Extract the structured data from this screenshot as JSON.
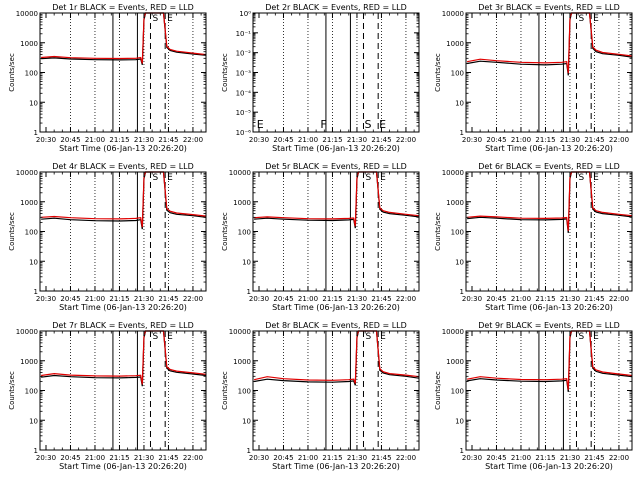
{
  "figure": {
    "x_axis_title": "Start Time (06-Jan-13 20:26:20)",
    "y_axis_title": "Counts/sec",
    "x_tick_labels": [
      "20:30",
      "20:45",
      "21:00",
      "21:15",
      "21:30",
      "21:45",
      "22:00"
    ],
    "y_tick_labels_log": [
      "1",
      "10",
      "100",
      "1000",
      "10000"
    ],
    "y_tick_labels_det2": [
      "10⁰",
      "10⁻¹",
      "10⁻²",
      "10⁻³",
      "10⁻⁴",
      "10⁻⁵",
      "10⁻⁶"
    ],
    "colors": {
      "events": "#000000",
      "lld": "#e00000"
    }
  },
  "chart_data": [
    {
      "type": "line",
      "title": "Det 1r BLACK = Events, RED = LLD",
      "xlabel": "Start Time (06-Jan-13 20:26:20)",
      "ylabel": "Counts/sec",
      "x_time_range": [
        "20:26:20",
        "22:08"
      ],
      "ylim": [
        1,
        10000
      ],
      "y_scale": "log",
      "grid": "dotted vertical at 15-min ticks",
      "markers": [
        {
          "label": "S",
          "time": "21:34"
        },
        {
          "label": "E",
          "time": "21:43"
        }
      ],
      "series": [
        {
          "name": "Events",
          "color": "#000000",
          "x": [
            "20:27",
            "20:35",
            "20:45",
            "21:00",
            "21:15",
            "21:25",
            "21:28",
            "21:29",
            "21:30",
            "21:31",
            "21:35",
            "21:40",
            "21:42",
            "21:44",
            "21:46",
            "21:50",
            "22:00",
            "22:08"
          ],
          "y": [
            290,
            310,
            285,
            270,
            265,
            270,
            285,
            180,
            6000,
            10000,
            10000,
            10000,
            10000,
            700,
            550,
            480,
            420,
            380
          ]
        },
        {
          "name": "LLD",
          "color": "#e00000",
          "x": [
            "20:27",
            "20:35",
            "20:45",
            "21:00",
            "21:15",
            "21:25",
            "21:28",
            "21:29",
            "21:30",
            "21:31",
            "21:35",
            "21:40",
            "21:42",
            "21:44",
            "21:46",
            "21:50",
            "22:00",
            "22:08"
          ],
          "y": [
            320,
            345,
            315,
            300,
            295,
            300,
            320,
            200,
            7000,
            10000,
            10000,
            10000,
            10000,
            760,
            600,
            520,
            450,
            400
          ]
        }
      ]
    },
    {
      "type": "line",
      "title": "Det 2r BLACK = Events, RED = LLD",
      "xlabel": "Start Time (06-Jan-13 20:26:20)",
      "ylabel": "Counts/sec",
      "x_time_range": [
        "20:26:20",
        "22:08"
      ],
      "ylim": [
        1e-06,
        1
      ],
      "y_scale": "log",
      "grid": "dotted vertical at 15-min ticks",
      "markers": [
        {
          "label": "E",
          "time": "20:28"
        },
        {
          "label": "F",
          "time": "21:07"
        },
        {
          "label": "S",
          "time": "21:34"
        },
        {
          "label": "E",
          "time": "21:43"
        }
      ],
      "series": []
    },
    {
      "type": "line",
      "title": "Det 3r BLACK = Events, RED = LLD",
      "xlabel": "Start Time (06-Jan-13 20:26:20)",
      "ylabel": "Counts/sec",
      "x_time_range": [
        "20:26:20",
        "22:08"
      ],
      "ylim": [
        1,
        10000
      ],
      "y_scale": "log",
      "grid": "dotted vertical at 15-min ticks",
      "markers": [
        {
          "label": "S",
          "time": "21:34"
        },
        {
          "label": "E",
          "time": "21:43"
        }
      ],
      "series": [
        {
          "name": "Events",
          "color": "#000000",
          "x": [
            "20:27",
            "20:35",
            "20:45",
            "21:00",
            "21:15",
            "21:25",
            "21:28",
            "21:29",
            "21:30",
            "21:31",
            "21:35",
            "21:40",
            "21:42",
            "21:44",
            "21:46",
            "21:50",
            "22:00",
            "22:08"
          ],
          "y": [
            200,
            240,
            220,
            190,
            180,
            190,
            200,
            80,
            6000,
            10000,
            10000,
            10000,
            10000,
            650,
            500,
            430,
            380,
            330
          ]
        },
        {
          "name": "LLD",
          "color": "#e00000",
          "x": [
            "20:27",
            "20:35",
            "20:45",
            "21:00",
            "21:15",
            "21:25",
            "21:28",
            "21:29",
            "21:30",
            "21:31",
            "21:35",
            "21:40",
            "21:42",
            "21:44",
            "21:46",
            "21:50",
            "22:00",
            "22:08"
          ],
          "y": [
            230,
            280,
            250,
            220,
            210,
            220,
            230,
            95,
            7000,
            10000,
            10000,
            10000,
            10000,
            720,
            560,
            470,
            410,
            360
          ]
        }
      ]
    },
    {
      "type": "line",
      "title": "Det 4r BLACK = Events, RED = LLD",
      "xlabel": "Start Time (06-Jan-13 20:26:20)",
      "ylabel": "Counts/sec",
      "x_time_range": [
        "20:26:20",
        "22:08"
      ],
      "ylim": [
        1,
        10000
      ],
      "y_scale": "log",
      "grid": "dotted vertical at 15-min ticks",
      "markers": [
        {
          "label": "S",
          "time": "21:34"
        },
        {
          "label": "E",
          "time": "21:43"
        }
      ],
      "series": [
        {
          "name": "Events",
          "color": "#000000",
          "x": [
            "20:27",
            "20:35",
            "20:45",
            "21:00",
            "21:15",
            "21:25",
            "21:28",
            "21:29",
            "21:30",
            "21:31",
            "21:35",
            "21:40",
            "21:42",
            "21:44",
            "21:46",
            "21:50",
            "22:00",
            "22:08"
          ],
          "y": [
            260,
            280,
            250,
            230,
            225,
            235,
            250,
            120,
            6000,
            10000,
            10000,
            10000,
            10000,
            520,
            430,
            380,
            340,
            300
          ]
        },
        {
          "name": "LLD",
          "color": "#e00000",
          "x": [
            "20:27",
            "20:35",
            "20:45",
            "21:00",
            "21:15",
            "21:25",
            "21:28",
            "21:29",
            "21:30",
            "21:31",
            "21:35",
            "21:40",
            "21:42",
            "21:44",
            "21:46",
            "21:50",
            "22:00",
            "22:08"
          ],
          "y": [
            300,
            320,
            290,
            270,
            265,
            275,
            290,
            140,
            7000,
            10000,
            10000,
            10000,
            10000,
            600,
            480,
            420,
            370,
            330
          ]
        }
      ]
    },
    {
      "type": "line",
      "title": "Det 5r BLACK = Events, RED = LLD",
      "xlabel": "Start Time (06-Jan-13 20:26:20)",
      "ylabel": "Counts/sec",
      "x_time_range": [
        "20:26:20",
        "22:08"
      ],
      "ylim": [
        1,
        10000
      ],
      "y_scale": "log",
      "grid": "dotted vertical at 15-min ticks",
      "markers": [
        {
          "label": "S",
          "time": "21:34"
        },
        {
          "label": "E",
          "time": "21:43"
        }
      ],
      "series": [
        {
          "name": "Events",
          "color": "#000000",
          "x": [
            "20:27",
            "20:35",
            "20:45",
            "21:00",
            "21:15",
            "21:25",
            "21:28",
            "21:29",
            "21:30",
            "21:31",
            "21:35",
            "21:40",
            "21:42",
            "21:44",
            "21:46",
            "21:50",
            "22:00",
            "22:08"
          ],
          "y": [
            260,
            280,
            260,
            240,
            235,
            245,
            255,
            130,
            6000,
            10000,
            10000,
            10000,
            10000,
            560,
            450,
            400,
            350,
            310
          ]
        },
        {
          "name": "LLD",
          "color": "#e00000",
          "x": [
            "20:27",
            "20:35",
            "20:45",
            "21:00",
            "21:15",
            "21:25",
            "21:28",
            "21:29",
            "21:30",
            "21:31",
            "21:35",
            "21:40",
            "21:42",
            "21:44",
            "21:46",
            "21:50",
            "22:00",
            "22:08"
          ],
          "y": [
            290,
            310,
            290,
            270,
            265,
            275,
            285,
            150,
            7000,
            10000,
            10000,
            10000,
            10000,
            620,
            500,
            440,
            380,
            340
          ]
        }
      ]
    },
    {
      "type": "line",
      "title": "Det 6r BLACK = Events, RED = LLD",
      "xlabel": "Start Time (06-Jan-13 20:26:20)",
      "ylabel": "Counts/sec",
      "x_time_range": [
        "20:26:20",
        "22:08"
      ],
      "ylim": [
        1,
        10000
      ],
      "y_scale": "log",
      "grid": "dotted vertical at 15-min ticks",
      "markers": [
        {
          "label": "S",
          "time": "21:34"
        },
        {
          "label": "E",
          "time": "21:43"
        }
      ],
      "series": [
        {
          "name": "Events",
          "color": "#000000",
          "x": [
            "20:27",
            "20:35",
            "20:45",
            "21:00",
            "21:15",
            "21:25",
            "21:28",
            "21:29",
            "21:30",
            "21:31",
            "21:35",
            "21:40",
            "21:42",
            "21:44",
            "21:46",
            "21:50",
            "22:00",
            "22:08"
          ],
          "y": [
            270,
            300,
            280,
            250,
            245,
            255,
            265,
            90,
            6000,
            10000,
            10000,
            10000,
            10000,
            560,
            450,
            400,
            350,
            310
          ]
        },
        {
          "name": "LLD",
          "color": "#e00000",
          "x": [
            "20:27",
            "20:35",
            "20:45",
            "21:00",
            "21:15",
            "21:25",
            "21:28",
            "21:29",
            "21:30",
            "21:31",
            "21:35",
            "21:40",
            "21:42",
            "21:44",
            "21:46",
            "21:50",
            "22:00",
            "22:08"
          ],
          "y": [
            300,
            330,
            310,
            280,
            275,
            285,
            295,
            105,
            7000,
            10000,
            10000,
            10000,
            10000,
            620,
            500,
            440,
            380,
            340
          ]
        }
      ]
    },
    {
      "type": "line",
      "title": "Det 7r BLACK = Events, RED = LLD",
      "xlabel": "Start Time (06-Jan-13 20:26:20)",
      "ylabel": "Counts/sec",
      "x_time_range": [
        "20:26:20",
        "22:08"
      ],
      "ylim": [
        1,
        10000
      ],
      "y_scale": "log",
      "grid": "dotted vertical at 15-min ticks",
      "markers": [
        {
          "label": "S",
          "time": "21:34"
        },
        {
          "label": "E",
          "time": "21:43"
        }
      ],
      "series": [
        {
          "name": "Events",
          "color": "#000000",
          "x": [
            "20:27",
            "20:35",
            "20:45",
            "21:00",
            "21:15",
            "21:25",
            "21:28",
            "21:29",
            "21:30",
            "21:31",
            "21:35",
            "21:40",
            "21:42",
            "21:44",
            "21:46",
            "21:50",
            "22:00",
            "22:08"
          ],
          "y": [
            280,
            320,
            290,
            270,
            265,
            275,
            285,
            140,
            6000,
            10000,
            10000,
            10000,
            10000,
            560,
            460,
            410,
            360,
            320
          ]
        },
        {
          "name": "LLD",
          "color": "#e00000",
          "x": [
            "20:27",
            "20:35",
            "20:45",
            "21:00",
            "21:15",
            "21:25",
            "21:28",
            "21:29",
            "21:30",
            "21:31",
            "21:35",
            "21:40",
            "21:42",
            "21:44",
            "21:46",
            "21:50",
            "22:00",
            "22:08"
          ],
          "y": [
            320,
            370,
            330,
            310,
            305,
            315,
            325,
            160,
            7000,
            10000,
            10000,
            10000,
            10000,
            620,
            510,
            450,
            390,
            350
          ]
        }
      ]
    },
    {
      "type": "line",
      "title": "Det 8r BLACK = Events, RED = LLD",
      "xlabel": "Start Time (06-Jan-13 20:26:20)",
      "ylabel": "Counts/sec",
      "x_time_range": [
        "20:26:20",
        "22:08"
      ],
      "ylim": [
        1,
        10000
      ],
      "y_scale": "log",
      "grid": "dotted vertical at 15-min ticks",
      "markers": [
        {
          "label": "S",
          "time": "21:34"
        },
        {
          "label": "E",
          "time": "21:43"
        }
      ],
      "series": [
        {
          "name": "Events",
          "color": "#000000",
          "x": [
            "20:27",
            "20:35",
            "20:45",
            "21:00",
            "21:15",
            "21:25",
            "21:28",
            "21:29",
            "21:30",
            "21:31",
            "21:35",
            "21:40",
            "21:42",
            "21:44",
            "21:46",
            "21:50",
            "22:00",
            "22:08"
          ],
          "y": [
            200,
            240,
            215,
            195,
            190,
            200,
            210,
            150,
            6000,
            10000,
            10000,
            10000,
            10000,
            480,
            390,
            340,
            300,
            260
          ]
        },
        {
          "name": "LLD",
          "color": "#e00000",
          "x": [
            "20:27",
            "20:35",
            "20:45",
            "21:00",
            "21:15",
            "21:25",
            "21:28",
            "21:29",
            "21:30",
            "21:31",
            "21:35",
            "21:40",
            "21:42",
            "21:44",
            "21:46",
            "21:50",
            "22:00",
            "22:08"
          ],
          "y": [
            230,
            290,
            250,
            225,
            220,
            230,
            240,
            170,
            7000,
            10000,
            10000,
            10000,
            10000,
            540,
            430,
            370,
            330,
            290
          ]
        }
      ]
    },
    {
      "type": "line",
      "title": "Det 9r BLACK = Events, RED = LLD",
      "xlabel": "Start Time (06-Jan-13 20:26:20)",
      "ylabel": "Counts/sec",
      "x_time_range": [
        "20:26:20",
        "22:08"
      ],
      "ylim": [
        1,
        10000
      ],
      "y_scale": "log",
      "grid": "dotted vertical at 15-min ticks",
      "markers": [
        {
          "label": "S",
          "time": "21:34"
        },
        {
          "label": "E",
          "time": "21:43"
        }
      ],
      "series": [
        {
          "name": "Events",
          "color": "#000000",
          "x": [
            "20:27",
            "20:35",
            "20:45",
            "21:00",
            "21:15",
            "21:25",
            "21:28",
            "21:29",
            "21:30",
            "21:31",
            "21:35",
            "21:40",
            "21:42",
            "21:44",
            "21:46",
            "21:50",
            "22:00",
            "22:08"
          ],
          "y": [
            210,
            250,
            225,
            205,
            200,
            210,
            220,
            90,
            6000,
            10000,
            10000,
            10000,
            10000,
            560,
            440,
            380,
            330,
            290
          ]
        },
        {
          "name": "LLD",
          "color": "#e00000",
          "x": [
            "20:27",
            "20:35",
            "20:45",
            "21:00",
            "21:15",
            "21:25",
            "21:28",
            "21:29",
            "21:30",
            "21:31",
            "21:35",
            "21:40",
            "21:42",
            "21:44",
            "21:46",
            "21:50",
            "22:00",
            "22:08"
          ],
          "y": [
            240,
            290,
            260,
            235,
            230,
            240,
            250,
            105,
            7000,
            10000,
            10000,
            10000,
            10000,
            620,
            490,
            420,
            360,
            320
          ]
        }
      ]
    }
  ]
}
